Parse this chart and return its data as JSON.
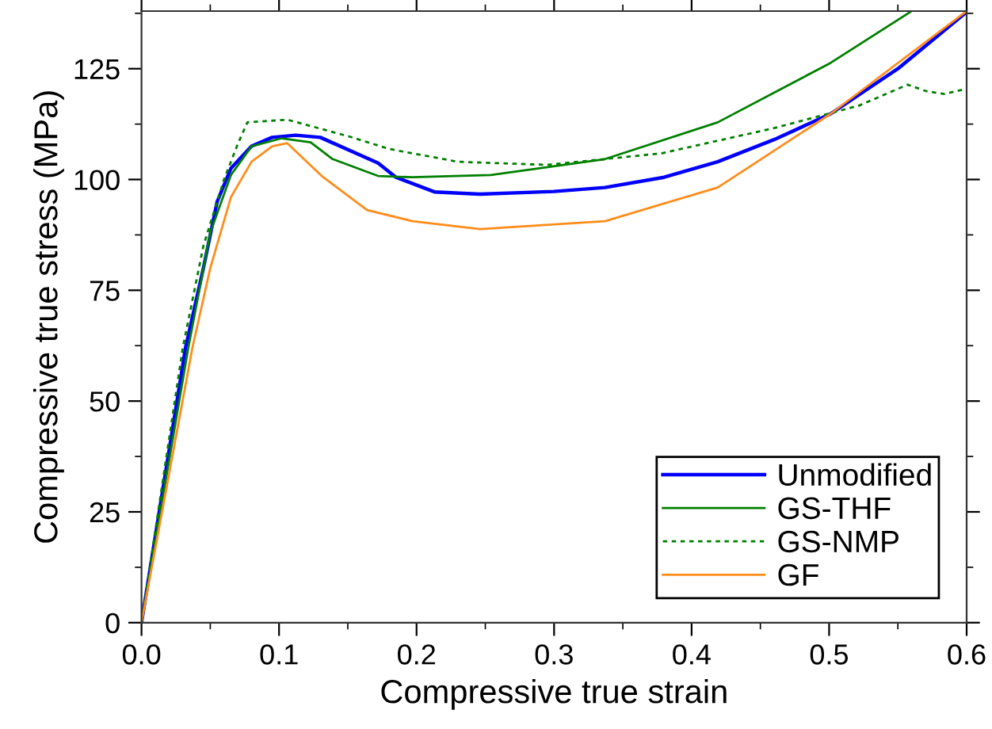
{
  "chart_data": {
    "type": "line",
    "xlabel": "Compressive true strain",
    "ylabel": "Compressive true stress (MPa)",
    "xlim": [
      0,
      0.6
    ],
    "ylim": [
      0,
      138
    ],
    "xticks": [
      {
        "value": 0,
        "label": "0.0"
      },
      0.1,
      0.2,
      0.3,
      0.4,
      0.5,
      0.6
    ],
    "yticks": [
      0,
      25,
      50,
      75,
      100,
      125
    ],
    "grid": false,
    "legend": "bottom right",
    "marker": "none",
    "series": [
      {
        "name": "Unmodified",
        "color": "#0000ff",
        "line_style": "solid",
        "x": [
          0,
          0.032,
          0.045,
          0.055,
          0.065,
          0.08,
          0.095,
          0.112,
          0.13,
          0.172,
          0.185,
          0.213,
          0.246,
          0.3,
          0.337,
          0.38,
          0.419,
          0.46,
          0.501,
          0.55,
          0.6
        ],
        "values": [
          0,
          62,
          80,
          95,
          102.5,
          107.5,
          109.5,
          110,
          109.5,
          103.7,
          100.5,
          97.2,
          96.7,
          97.3,
          98.2,
          100.5,
          104,
          109,
          114.8,
          125,
          137.8
        ]
      },
      {
        "name": "GS-THF",
        "color": "#008000",
        "line_style": "solid",
        "x": [
          0,
          0.034,
          0.05,
          0.065,
          0.08,
          0.102,
          0.123,
          0.139,
          0.172,
          0.197,
          0.254,
          0.337,
          0.419,
          0.501,
          0.559
        ],
        "values": [
          0,
          62,
          88,
          101,
          107.5,
          109.3,
          108.4,
          104.6,
          100.8,
          100.5,
          101,
          104.6,
          112.9,
          126.3,
          137.8
        ]
      },
      {
        "name": "GS-NMP",
        "color": "#008000",
        "line_style": "dotted",
        "x": [
          0,
          0.03,
          0.045,
          0.06,
          0.07,
          0.077,
          0.106,
          0.151,
          0.18,
          0.23,
          0.295,
          0.378,
          0.46,
          0.522,
          0.557,
          0.571,
          0.584,
          0.6
        ],
        "values": [
          0,
          62,
          85,
          100,
          108,
          112.9,
          113.5,
          109.7,
          106.9,
          104,
          103.3,
          105.9,
          111.6,
          116.7,
          121.4,
          119.9,
          119.3,
          120.5
        ]
      },
      {
        "name": "GF",
        "color": "#ff8c1a",
        "line_style": "solid",
        "x": [
          0,
          0.037,
          0.05,
          0.065,
          0.08,
          0.095,
          0.106,
          0.131,
          0.164,
          0.197,
          0.246,
          0.337,
          0.419,
          0.501,
          0.6
        ],
        "values": [
          0,
          62,
          80,
          96,
          104,
          107.5,
          108.2,
          100.8,
          93.1,
          90.6,
          88.8,
          90.6,
          98.2,
          114.8,
          138
        ]
      }
    ]
  }
}
